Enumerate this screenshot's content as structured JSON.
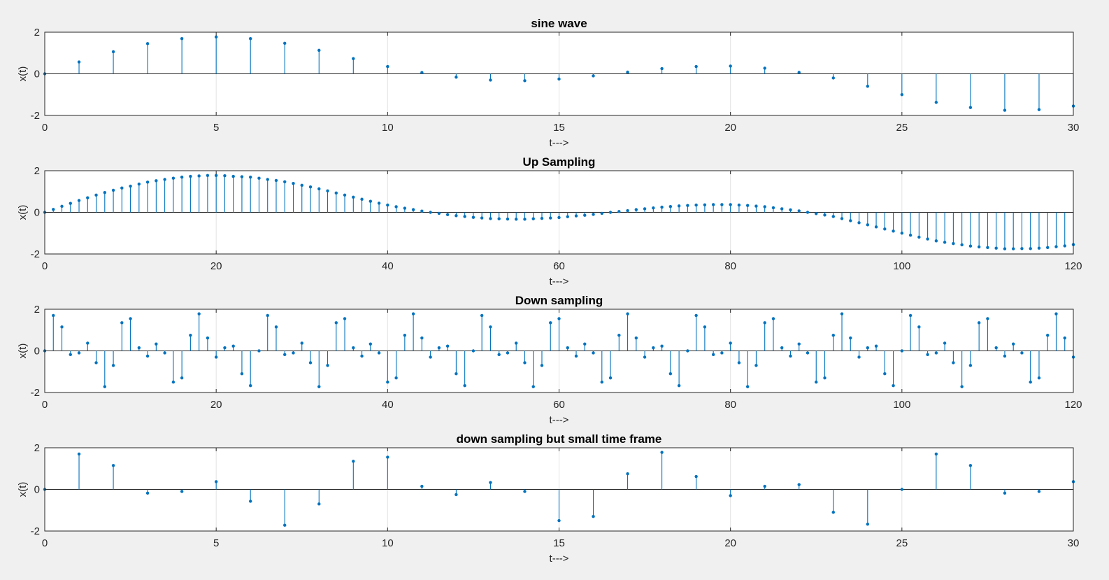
{
  "figure": {
    "background": "#f0f0f0",
    "stem_color": "#0072bd"
  },
  "chart_data": [
    {
      "type": "stem",
      "title": "sine wave",
      "xlabel": "t--->",
      "ylabel": "x(t)",
      "xlim": [
        0,
        30
      ],
      "ylim": [
        -2,
        2
      ],
      "xticks": [
        0,
        5,
        10,
        15,
        20,
        25,
        30
      ],
      "yticks": [
        -2,
        0,
        2
      ],
      "grid": "x",
      "series": [
        {
          "x": [
            0,
            1,
            2,
            3,
            4,
            5,
            6,
            7,
            8,
            9,
            10,
            11,
            12,
            13,
            14,
            15,
            16,
            17,
            18,
            19,
            20,
            21,
            22,
            23,
            24,
            25,
            26,
            27,
            28,
            29,
            30
          ],
          "values": [
            0,
            0.57,
            1.06,
            1.45,
            1.69,
            1.77,
            1.69,
            1.47,
            1.13,
            0.73,
            0.35,
            0.06,
            -0.16,
            -0.3,
            -0.33,
            -0.25,
            -0.1,
            0.08,
            0.25,
            0.35,
            0.37,
            0.27,
            0.07,
            -0.2,
            -0.6,
            -1.0,
            -1.37,
            -1.62,
            -1.75,
            -1.72,
            -1.55
          ]
        }
      ]
    },
    {
      "type": "stem",
      "title": "Up Sampling",
      "xlabel": "t--->",
      "ylabel": "x(t)",
      "xlim": [
        0,
        120
      ],
      "ylim": [
        -2,
        2
      ],
      "xticks": [
        0,
        20,
        40,
        60,
        80,
        100,
        120
      ],
      "yticks": [
        -2,
        0,
        2
      ],
      "grid": "x",
      "series": [
        {
          "x": [
            0,
            1,
            2,
            3,
            4,
            5,
            6,
            7,
            8,
            9,
            10,
            11,
            12,
            13,
            14,
            15,
            16,
            17,
            18,
            19,
            20,
            21,
            22,
            23,
            24,
            25,
            26,
            27,
            28,
            29,
            30,
            31,
            32,
            33,
            34,
            35,
            36,
            37,
            38,
            39,
            40,
            41,
            42,
            43,
            44,
            45,
            46,
            47,
            48,
            49,
            50,
            51,
            52,
            53,
            54,
            55,
            56,
            57,
            58,
            59,
            60,
            61,
            62,
            63,
            64,
            65,
            66,
            67,
            68,
            69,
            70,
            71,
            72,
            73,
            74,
            75,
            76,
            77,
            78,
            79,
            80,
            81,
            82,
            83,
            84,
            85,
            86,
            87,
            88,
            89,
            90,
            91,
            92,
            93,
            94,
            95,
            96,
            97,
            98,
            99,
            100,
            101,
            102,
            103,
            104,
            105,
            106,
            107,
            108,
            109,
            110,
            111,
            112,
            113,
            114,
            115,
            116,
            117,
            118,
            119,
            120
          ],
          "values": [
            0,
            0.14,
            0.29,
            0.43,
            0.57,
            0.7,
            0.83,
            0.95,
            1.06,
            1.17,
            1.26,
            1.36,
            1.45,
            1.52,
            1.58,
            1.64,
            1.69,
            1.73,
            1.75,
            1.77,
            1.77,
            1.76,
            1.73,
            1.71,
            1.69,
            1.64,
            1.58,
            1.53,
            1.47,
            1.39,
            1.3,
            1.22,
            1.13,
            1.03,
            0.93,
            0.83,
            0.73,
            0.63,
            0.53,
            0.44,
            0.35,
            0.27,
            0.2,
            0.13,
            0.06,
            0,
            -0.05,
            -0.11,
            -0.16,
            -0.2,
            -0.24,
            -0.27,
            -0.3,
            -0.31,
            -0.32,
            -0.33,
            -0.33,
            -0.31,
            -0.29,
            -0.27,
            -0.25,
            -0.21,
            -0.17,
            -0.14,
            -0.1,
            -0.05,
            0,
            0.04,
            0.08,
            0.13,
            0.17,
            0.21,
            0.25,
            0.28,
            0.31,
            0.33,
            0.35,
            0.36,
            0.37,
            0.37,
            0.37,
            0.35,
            0.33,
            0.3,
            0.27,
            0.22,
            0.17,
            0.12,
            0.07,
            0,
            -0.06,
            -0.13,
            -0.2,
            -0.3,
            -0.4,
            -0.5,
            -0.6,
            -0.7,
            -0.8,
            -0.9,
            -1.0,
            -1.1,
            -1.19,
            -1.28,
            -1.37,
            -1.44,
            -1.5,
            -1.56,
            -1.62,
            -1.66,
            -1.69,
            -1.72,
            -1.75,
            -1.75,
            -1.74,
            -1.74,
            -1.72,
            -1.69,
            -1.65,
            -1.61,
            -1.55
          ]
        }
      ]
    },
    {
      "type": "stem",
      "title": "Down sampling",
      "xlabel": "t--->",
      "ylabel": "x(t)",
      "xlim": [
        0,
        120
      ],
      "ylim": [
        -2,
        2
      ],
      "xticks": [
        0,
        20,
        40,
        60,
        80,
        100,
        120
      ],
      "yticks": [
        -2,
        0,
        2
      ],
      "grid": "x",
      "series": [
        {
          "x": [
            0,
            1,
            2,
            3,
            4,
            5,
            6,
            7,
            8,
            9,
            10,
            11,
            12,
            13,
            14,
            15,
            16,
            17,
            18,
            19,
            20,
            21,
            22,
            23,
            24,
            25,
            26,
            27,
            28,
            29,
            30,
            31,
            32,
            33,
            34,
            35,
            36,
            37,
            38,
            39,
            40,
            41,
            42,
            43,
            44,
            45,
            46,
            47,
            48,
            49,
            50,
            51,
            52,
            53,
            54,
            55,
            56,
            57,
            58,
            59,
            60,
            61,
            62,
            63,
            64,
            65,
            66,
            67,
            68,
            69,
            70,
            71,
            72,
            73,
            74,
            75,
            76,
            77,
            78,
            79,
            80,
            81,
            82,
            83,
            84,
            85,
            86,
            87,
            88,
            89,
            90,
            91,
            92,
            93,
            94,
            95,
            96,
            97,
            98,
            99,
            100,
            101,
            102,
            103,
            104,
            105,
            106,
            107,
            108,
            109,
            110,
            111,
            112,
            113,
            114,
            115,
            116,
            117,
            118,
            119,
            120
          ],
          "values": [
            0,
            1.7,
            1.15,
            -0.18,
            -0.1,
            0.37,
            -0.57,
            -1.72,
            -0.7,
            1.35,
            1.55,
            0.15,
            -0.25,
            0.33,
            -0.1,
            -1.5,
            -1.3,
            0.75,
            1.78,
            0.62,
            -0.3,
            0.15,
            0.23,
            -1.1,
            -1.67,
            0,
            1.7,
            1.15,
            -0.18,
            -0.1,
            0.37,
            -0.57,
            -1.72,
            -0.7,
            1.35,
            1.55,
            0.15,
            -0.25,
            0.33,
            -0.1,
            -1.5,
            -1.3,
            0.75,
            1.78,
            0.62,
            -0.3,
            0.15,
            0.23,
            -1.1,
            -1.67,
            0,
            1.7,
            1.15,
            -0.18,
            -0.1,
            0.37,
            -0.57,
            -1.72,
            -0.7,
            1.35,
            1.55,
            0.15,
            -0.25,
            0.33,
            -0.1,
            -1.5,
            -1.3,
            0.75,
            1.78,
            0.62,
            -0.3,
            0.15,
            0.23,
            -1.1,
            -1.67,
            0,
            1.7,
            1.15,
            -0.18,
            -0.1,
            0.37,
            -0.57,
            -1.72,
            -0.7,
            1.35,
            1.55,
            0.15,
            -0.25,
            0.33,
            -0.1,
            -1.5,
            -1.3,
            0.75,
            1.78,
            0.62,
            -0.3,
            0.15,
            0.23,
            -1.1,
            -1.67,
            0,
            1.7,
            1.15,
            -0.18,
            -0.1,
            0.37,
            -0.57,
            -1.72,
            -0.7,
            1.35,
            1.55,
            0.15,
            -0.25,
            0.33,
            -0.1,
            -1.5,
            -1.3,
            0.75,
            1.78,
            0.62,
            -0.3
          ]
        }
      ]
    },
    {
      "type": "stem",
      "title": "down sampling but small time frame",
      "xlabel": "t--->",
      "ylabel": "x(t)",
      "xlim": [
        0,
        30
      ],
      "ylim": [
        -2,
        2
      ],
      "xticks": [
        0,
        5,
        10,
        15,
        20,
        25,
        30
      ],
      "yticks": [
        -2,
        0,
        2
      ],
      "grid": "x",
      "series": [
        {
          "x": [
            0,
            1,
            2,
            3,
            4,
            5,
            6,
            7,
            8,
            9,
            10,
            11,
            12,
            13,
            14,
            15,
            16,
            17,
            18,
            19,
            20,
            21,
            22,
            23,
            24,
            25,
            26,
            27,
            28,
            29,
            30
          ],
          "values": [
            0,
            1.7,
            1.15,
            -0.18,
            -0.1,
            0.37,
            -0.57,
            -1.72,
            -0.7,
            1.35,
            1.55,
            0.15,
            -0.25,
            0.33,
            -0.1,
            -1.5,
            -1.3,
            0.75,
            1.78,
            0.62,
            -0.3,
            0.15,
            0.23,
            -1.1,
            -1.67,
            0,
            1.7,
            1.15,
            -0.18,
            -0.1,
            0.37
          ]
        }
      ]
    }
  ]
}
